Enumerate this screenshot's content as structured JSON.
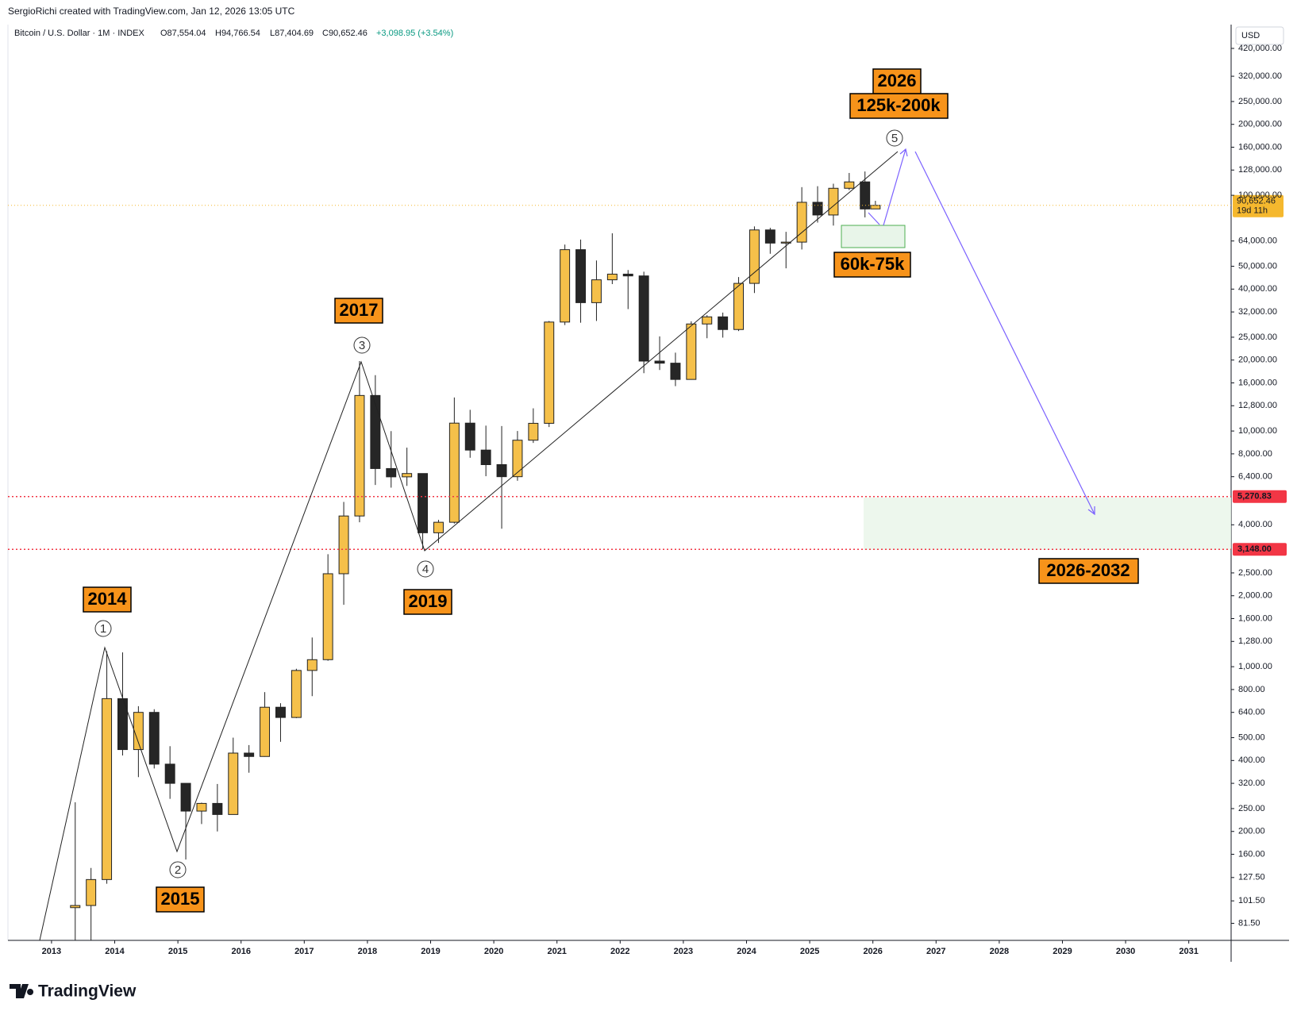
{
  "header": {
    "credit": "SergioRichi created with TradingView.com, Jan 12, 2026 13:05 UTC",
    "symbol": "Bitcoin / U.S. Dollar · 1M · INDEX",
    "open": "O87,554.04",
    "high": "H94,766.54",
    "low": "L87,404.69",
    "close": "C90,652.46",
    "change": "+3,098.95 (+3.54%)"
  },
  "brand": "TradingView",
  "chart_data": {
    "type": "candlestick",
    "currency": "USD",
    "log_scale": true,
    "up_color": "#f5c04a",
    "down_color": "#262626",
    "x": [
      2013.375,
      2013.625,
      2013.875,
      2014.125,
      2014.375,
      2014.625,
      2014.875,
      2015.125,
      2015.375,
      2015.625,
      2015.875,
      2016.125,
      2016.375,
      2016.625,
      2016.875,
      2017.125,
      2017.375,
      2017.625,
      2017.875,
      2018.125,
      2018.375,
      2018.625,
      2018.875,
      2019.125,
      2019.375,
      2019.625,
      2019.875,
      2020.125,
      2020.375,
      2020.625,
      2020.875,
      2021.125,
      2021.375,
      2021.625,
      2021.875,
      2022.125,
      2022.375,
      2022.625,
      2022.875,
      2023.125,
      2023.375,
      2023.625,
      2023.875,
      2024.125,
      2024.375,
      2024.625,
      2024.875,
      2025.125,
      2025.375,
      2025.625,
      2025.875,
      2026.04
    ],
    "open": [
      95,
      97,
      125,
      732,
      445,
      640,
      386,
      320,
      244,
      263,
      236,
      430,
      416,
      673,
      609,
      964,
      1071,
      2480,
      4360,
      14150,
      6930,
      6390,
      6600,
      3700,
      4100,
      10800,
      8300,
      7200,
      6400,
      9140,
      10780,
      28990,
      58800,
      35040,
      43800,
      46300,
      45500,
      19800,
      19400,
      16550,
      28450,
      30500,
      26950,
      42300,
      71300,
      62700,
      63300,
      93400,
      82500,
      107100,
      114000,
      87554.04
    ],
    "high": [
      266,
      140,
      1163,
      1150,
      680,
      660,
      460,
      320,
      265,
      318,
      500,
      465,
      780,
      700,
      980,
      1330,
      3000,
      5000,
      19800,
      17250,
      9990,
      8500,
      6600,
      4200,
      13880,
      12300,
      10540,
      10500,
      10000,
      12480,
      29300,
      61800,
      64900,
      52900,
      69000,
      48200,
      47400,
      25200,
      21500,
      29200,
      31000,
      31800,
      45000,
      73800,
      72800,
      70000,
      108300,
      109300,
      112000,
      124400,
      126200,
      94766.54
    ],
    "low": [
      65,
      65,
      120,
      420,
      340,
      370,
      275,
      152,
      215,
      200,
      236,
      355,
      415,
      480,
      605,
      750,
      1060,
      1830,
      4100,
      5900,
      5750,
      5850,
      3150,
      3350,
      4050,
      7700,
      6430,
      3850,
      6150,
      8900,
      10400,
      28150,
      28800,
      29300,
      42000,
      32900,
      17600,
      18150,
      15500,
      16500,
      24750,
      24900,
      26550,
      38500,
      56500,
      49000,
      58900,
      76600,
      74400,
      105300,
      80600,
      87404.69
    ],
    "close": [
      97,
      125,
      732,
      445,
      640,
      386,
      320,
      244,
      263,
      236,
      430,
      416,
      673,
      609,
      964,
      1071,
      2480,
      4360,
      14150,
      6930,
      6390,
      6600,
      3700,
      4100,
      10800,
      8300,
      7200,
      6400,
      9140,
      10780,
      28990,
      58800,
      35040,
      43800,
      46300,
      45500,
      19800,
      19400,
      16550,
      28450,
      30500,
      26950,
      42300,
      71300,
      62700,
      63300,
      93400,
      82500,
      107100,
      114000,
      87500,
      90652.46
    ],
    "xlim": [
      2012.31,
      2031.67
    ],
    "xticks": [
      2013,
      2014,
      2015,
      2016,
      2017,
      2018,
      2019,
      2020,
      2021,
      2022,
      2023,
      2024,
      2025,
      2026,
      2027,
      2028,
      2029,
      2030,
      2031
    ],
    "ylim": [
      69,
      530000
    ],
    "yticks": [
      {
        "value": 420000,
        "label": "420,000.00"
      },
      {
        "value": 320000,
        "label": "320,000.00"
      },
      {
        "value": 250000,
        "label": "250,000.00"
      },
      {
        "value": 200000,
        "label": "200,000.00"
      },
      {
        "value": 160000,
        "label": "160,000.00"
      },
      {
        "value": 128000,
        "label": "128,000.00"
      },
      {
        "value": 100000,
        "label": "100,000.00"
      },
      {
        "value": 64000,
        "label": "64,000.00"
      },
      {
        "value": 50000,
        "label": "50,000.00"
      },
      {
        "value": 40000,
        "label": "40,000.00"
      },
      {
        "value": 32000,
        "label": "32,000.00"
      },
      {
        "value": 25000,
        "label": "25,000.00"
      },
      {
        "value": 20000,
        "label": "20,000.00"
      },
      {
        "value": 16000,
        "label": "16,000.00"
      },
      {
        "value": 12800,
        "label": "12,800.00"
      },
      {
        "value": 10000,
        "label": "10,000.00"
      },
      {
        "value": 8000,
        "label": "8,000.00"
      },
      {
        "value": 6400,
        "label": "6,400.00"
      },
      {
        "value": 4000,
        "label": "4,000.00"
      },
      {
        "value": 2500,
        "label": "2,500.00"
      },
      {
        "value": 2000,
        "label": "2,000.00"
      },
      {
        "value": 1600,
        "label": "1,600.00"
      },
      {
        "value": 1280,
        "label": "1,280.00"
      },
      {
        "value": 1000,
        "label": "1,000.00"
      },
      {
        "value": 800,
        "label": "800.00"
      },
      {
        "value": 640,
        "label": "640.00"
      },
      {
        "value": 500,
        "label": "500.00"
      },
      {
        "value": 400,
        "label": "400.00"
      },
      {
        "value": 320,
        "label": "320.00"
      },
      {
        "value": 250,
        "label": "250.00"
      },
      {
        "value": 200,
        "label": "200.00"
      },
      {
        "value": 160,
        "label": "160.00"
      },
      {
        "value": 127.5,
        "label": "127.50"
      },
      {
        "value": 101.5,
        "label": "101.50"
      },
      {
        "value": 81.5,
        "label": "81.50"
      }
    ],
    "levels": [
      {
        "value": 5270.83,
        "label": "5,270.83",
        "color": "#f23645"
      },
      {
        "value": 3148,
        "label": "3,148.00",
        "color": "#f23645"
      }
    ],
    "last_price": {
      "value": 90652.46,
      "label": "90,652.46",
      "countdown": "19d 11h",
      "color": "#f5b82e"
    },
    "annotations": {
      "wave_1": "1",
      "wave_2": "2",
      "wave_3": "3",
      "wave_4": "4",
      "wave_5": "5",
      "year_2014": "2014",
      "year_2015": "2015",
      "year_2017": "2017",
      "year_2019": "2019",
      "year_2026": "2026",
      "target_high": "125k-200k",
      "target_pullback": "60k-75k",
      "target_bear": "2026-2032"
    }
  }
}
